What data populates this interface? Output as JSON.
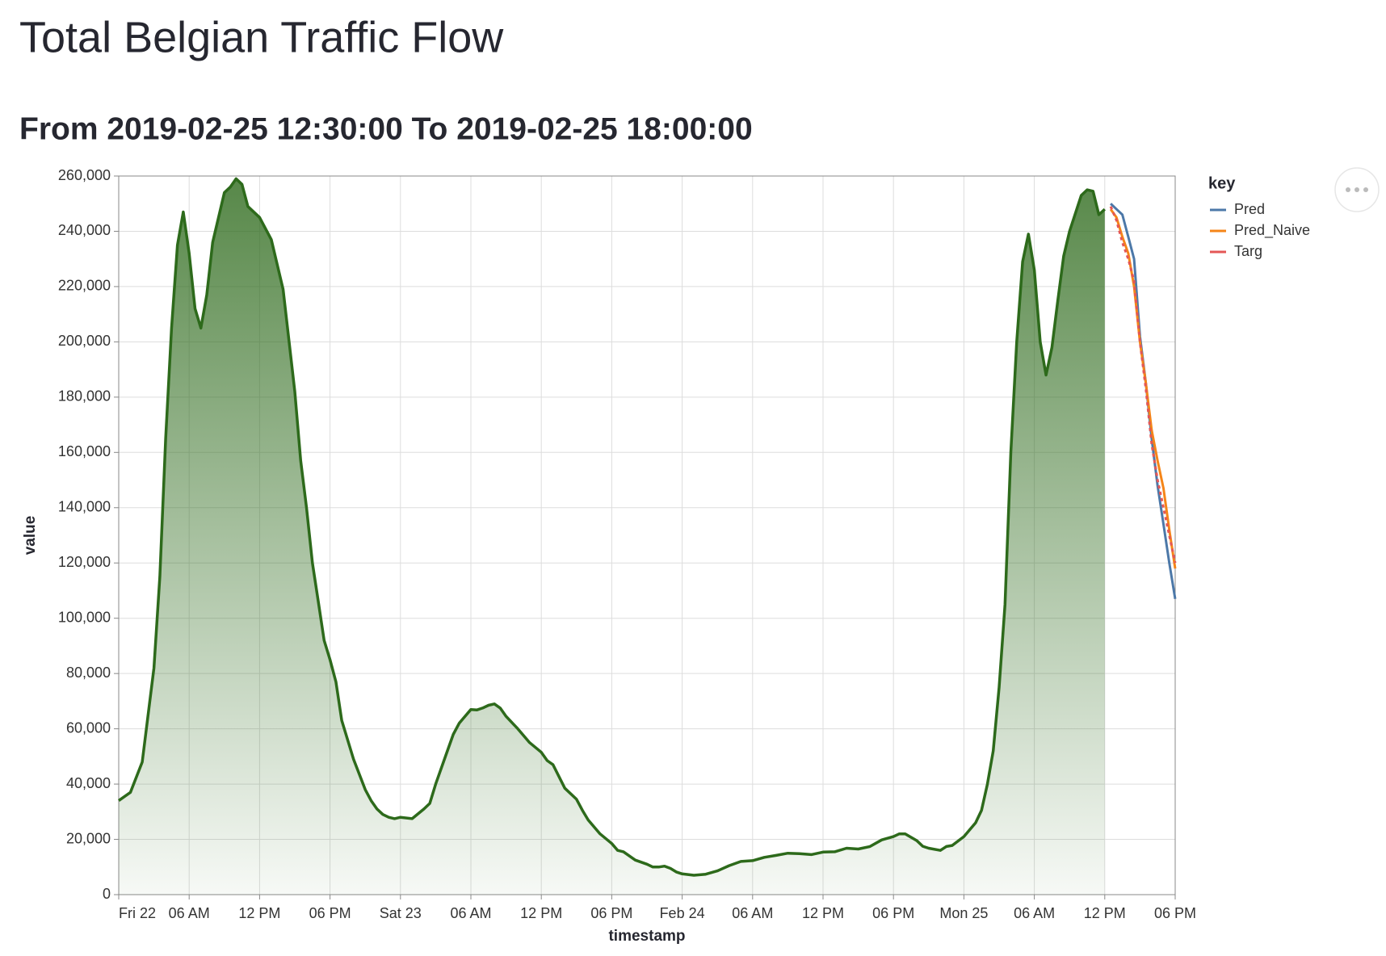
{
  "chart_data": {
    "type": "line",
    "title": "Total Belgian Traffic Flow",
    "subtitle": "From 2019-02-25 12:30:00 To 2019-02-25 18:00:00",
    "x_label": "timestamp",
    "y_label": "value",
    "legend_title": "key",
    "legend_position": "right",
    "grid": true,
    "xlim": [
      "2019-02-22T00:00",
      "2019-02-25T18:00"
    ],
    "xticks": [
      {
        "value": "2019-02-22T00:00",
        "label": "Fri 22"
      },
      {
        "value": "2019-02-22T06:00",
        "label": "06 AM"
      },
      {
        "value": "2019-02-22T12:00",
        "label": "12 PM"
      },
      {
        "value": "2019-02-22T18:00",
        "label": "06 PM"
      },
      {
        "value": "2019-02-23T00:00",
        "label": "Sat 23"
      },
      {
        "value": "2019-02-23T06:00",
        "label": "06 AM"
      },
      {
        "value": "2019-02-23T12:00",
        "label": "12 PM"
      },
      {
        "value": "2019-02-23T18:00",
        "label": "06 PM"
      },
      {
        "value": "2019-02-24T00:00",
        "label": "Feb 24"
      },
      {
        "value": "2019-02-24T06:00",
        "label": "06 AM"
      },
      {
        "value": "2019-02-24T12:00",
        "label": "12 PM"
      },
      {
        "value": "2019-02-24T18:00",
        "label": "06 PM"
      },
      {
        "value": "2019-02-25T00:00",
        "label": "Mon 25"
      },
      {
        "value": "2019-02-25T06:00",
        "label": "06 AM"
      },
      {
        "value": "2019-02-25T12:00",
        "label": "12 PM"
      },
      {
        "value": "2019-02-25T18:00",
        "label": "06 PM"
      }
    ],
    "ylim": [
      0,
      260000
    ],
    "yticks": [
      0,
      {
        "value": 20000,
        "label": "20,000"
      },
      {
        "value": 40000,
        "label": "40,000"
      },
      {
        "value": 60000,
        "label": "60,000"
      },
      {
        "value": 80000,
        "label": "80,000"
      },
      {
        "value": 100000,
        "label": "100,000"
      },
      {
        "value": 120000,
        "label": "120,000"
      },
      {
        "value": 140000,
        "label": "140,000"
      },
      {
        "value": 160000,
        "label": "160,000"
      },
      {
        "value": 180000,
        "label": "180,000"
      },
      {
        "value": 200000,
        "label": "200,000"
      },
      {
        "value": 220000,
        "label": "220,000"
      },
      {
        "value": 240000,
        "label": "240,000"
      },
      {
        "value": 260000,
        "label": "260,000"
      }
    ],
    "series": [
      {
        "color": "#2d6a1b",
        "style": "area",
        "x": [
          "2019-02-22T00:00",
          "2019-02-22T01:00",
          "2019-02-22T02:00",
          "2019-02-22T03:00",
          "2019-02-22T03:30",
          "2019-02-22T04:00",
          "2019-02-22T04:30",
          "2019-02-22T05:00",
          "2019-02-22T05:30",
          "2019-02-22T06:00",
          "2019-02-22T06:30",
          "2019-02-22T07:00",
          "2019-02-22T07:30",
          "2019-02-22T08:00",
          "2019-02-22T09:00",
          "2019-02-22T09:30",
          "2019-02-22T10:00",
          "2019-02-22T10:30",
          "2019-02-22T11:00",
          "2019-02-22T12:00",
          "2019-02-22T13:00",
          "2019-02-22T13:30",
          "2019-02-22T14:00",
          "2019-02-22T15:00",
          "2019-02-22T15:30",
          "2019-02-22T16:00",
          "2019-02-22T16:30",
          "2019-02-22T17:00",
          "2019-02-22T17:30",
          "2019-02-22T18:00",
          "2019-02-22T18:30",
          "2019-02-22T19:00",
          "2019-02-22T20:00",
          "2019-02-22T21:00",
          "2019-02-22T21:30",
          "2019-02-22T22:00",
          "2019-02-22T22:30",
          "2019-02-22T23:00",
          "2019-02-22T23:30",
          "2019-02-23T00:00",
          "2019-02-23T01:00",
          "2019-02-23T02:00",
          "2019-02-23T02:30",
          "2019-02-23T03:00",
          "2019-02-23T04:00",
          "2019-02-23T04:30",
          "2019-02-23T05:00",
          "2019-02-23T05:30",
          "2019-02-23T06:00",
          "2019-02-23T06:30",
          "2019-02-23T07:00",
          "2019-02-23T07:30",
          "2019-02-23T08:00",
          "2019-02-23T08:30",
          "2019-02-23T09:00",
          "2019-02-23T10:00",
          "2019-02-23T11:00",
          "2019-02-23T12:00",
          "2019-02-23T12:30",
          "2019-02-23T13:00",
          "2019-02-23T14:00",
          "2019-02-23T15:00",
          "2019-02-23T15:30",
          "2019-02-23T16:00",
          "2019-02-23T17:00",
          "2019-02-23T18:00",
          "2019-02-23T18:30",
          "2019-02-23T19:00",
          "2019-02-23T20:00",
          "2019-02-23T21:00",
          "2019-02-23T21:30",
          "2019-02-23T22:00",
          "2019-02-23T22:30",
          "2019-02-23T23:00",
          "2019-02-23T23:30",
          "2019-02-24T00:00",
          "2019-02-24T01:00",
          "2019-02-24T02:00",
          "2019-02-24T03:00",
          "2019-02-24T04:00",
          "2019-02-24T05:00",
          "2019-02-24T06:00",
          "2019-02-24T07:00",
          "2019-02-24T08:00",
          "2019-02-24T09:00",
          "2019-02-24T10:00",
          "2019-02-24T11:00",
          "2019-02-24T12:00",
          "2019-02-24T13:00",
          "2019-02-24T14:00",
          "2019-02-24T15:00",
          "2019-02-24T16:00",
          "2019-02-24T17:00",
          "2019-02-24T18:00",
          "2019-02-24T18:30",
          "2019-02-24T19:00",
          "2019-02-24T20:00",
          "2019-02-24T20:30",
          "2019-02-24T21:00",
          "2019-02-24T22:00",
          "2019-02-24T22:30",
          "2019-02-24T23:00",
          "2019-02-25T00:00",
          "2019-02-25T01:00",
          "2019-02-25T01:30",
          "2019-02-25T02:00",
          "2019-02-25T02:30",
          "2019-02-25T03:00",
          "2019-02-25T03:30",
          "2019-02-25T04:00",
          "2019-02-25T04:30",
          "2019-02-25T05:00",
          "2019-02-25T05:30",
          "2019-02-25T06:00",
          "2019-02-25T06:30",
          "2019-02-25T07:00",
          "2019-02-25T07:30",
          "2019-02-25T08:00",
          "2019-02-25T08:30",
          "2019-02-25T09:00",
          "2019-02-25T10:00",
          "2019-02-25T10:30",
          "2019-02-25T11:00",
          "2019-02-25T11:30",
          "2019-02-25T12:00"
        ],
        "values": [
          34000,
          37000,
          48000,
          82000,
          115000,
          165000,
          205000,
          235000,
          247000,
          232000,
          212000,
          205000,
          217000,
          236000,
          254000,
          256000,
          259000,
          257000,
          249000,
          245000,
          237000,
          228000,
          219000,
          182000,
          157000,
          140000,
          120000,
          106000,
          92000,
          85000,
          77000,
          63000,
          49000,
          38000,
          34000,
          31000,
          29000,
          28000,
          27500,
          28000,
          27500,
          31000,
          33000,
          40000,
          52000,
          58000,
          62000,
          64500,
          67000,
          66800,
          67500,
          68500,
          69000,
          67500,
          64500,
          60000,
          55000,
          51500,
          48500,
          47000,
          38500,
          34500,
          30500,
          27000,
          22000,
          18500,
          16000,
          15500,
          12500,
          11000,
          10000,
          10000,
          10300,
          9500,
          8200,
          7500,
          7000,
          7400,
          8600,
          10500,
          12000,
          12300,
          13500,
          14200,
          15000,
          14800,
          14500,
          15400,
          15500,
          16800,
          16500,
          17400,
          19800,
          21000,
          22000,
          22000,
          19500,
          17500,
          16800,
          16000,
          17400,
          17800,
          21000,
          26000,
          30500,
          40000,
          52000,
          75000,
          105000,
          160000,
          200000,
          229000,
          239000,
          226000,
          200000,
          188000,
          198000,
          215000,
          231000,
          240000,
          253000,
          255000,
          254500,
          246000,
          248000
        ]
      },
      {
        "name": "Pred",
        "color": "#4c78a8",
        "x": [
          "2019-02-25T12:30",
          "2019-02-25T13:00",
          "2019-02-25T13:30",
          "2019-02-25T14:00",
          "2019-02-25T14:30",
          "2019-02-25T15:00",
          "2019-02-25T15:30",
          "2019-02-25T16:00",
          "2019-02-25T16:30",
          "2019-02-25T17:00",
          "2019-02-25T17:30",
          "2019-02-25T18:00"
        ],
        "values": [
          250000,
          248000,
          246000,
          238000,
          230000,
          202000,
          185000,
          165000,
          148000,
          134000,
          120000,
          107000
        ]
      },
      {
        "name": "Pred_Naive",
        "color": "#f58518",
        "x": [
          "2019-02-25T12:30",
          "2019-02-25T13:00",
          "2019-02-25T13:30",
          "2019-02-25T14:00",
          "2019-02-25T14:30",
          "2019-02-25T15:00",
          "2019-02-25T15:30",
          "2019-02-25T16:00",
          "2019-02-25T16:30",
          "2019-02-25T17:00",
          "2019-02-25T17:30",
          "2019-02-25T18:00"
        ],
        "values": [
          248000,
          245000,
          238000,
          232000,
          220000,
          200000,
          185000,
          168000,
          157000,
          147000,
          132000,
          118000
        ]
      },
      {
        "name": "Targ",
        "color": "#e45756",
        "dash": true,
        "x": [
          "2019-02-25T12:30",
          "2019-02-25T13:00",
          "2019-02-25T13:30",
          "2019-02-25T14:00",
          "2019-02-25T14:30",
          "2019-02-25T15:00",
          "2019-02-25T15:30",
          "2019-02-25T16:00",
          "2019-02-25T16:30",
          "2019-02-25T17:00",
          "2019-02-25T17:30",
          "2019-02-25T18:00"
        ],
        "values": [
          249000,
          244000,
          236000,
          230000,
          222000,
          200000,
          183000,
          163000,
          150000,
          140000,
          130000,
          120000
        ]
      }
    ]
  }
}
